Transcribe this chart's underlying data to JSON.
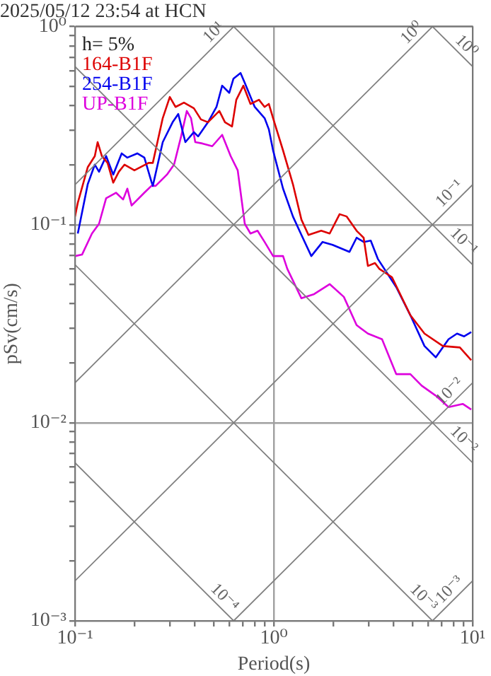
{
  "chart_data": {
    "type": "line",
    "title": "2025/05/12 23:54 at HCN",
    "xlabel": "Period(s)",
    "ylabel": "pSv(cm/s)",
    "legend_title": "h= 5%",
    "legend": "top left",
    "log": "xy",
    "grid": true,
    "marker": "none",
    "line_style": "solid",
    "xlim": [
      0.1,
      10
    ],
    "ylim": [
      0.001,
      1
    ],
    "xticks": [
      {
        "value": 0.1,
        "label": "10⁻¹"
      },
      {
        "value": 0.2,
        "label": null
      },
      {
        "value": 0.3,
        "label": null
      },
      {
        "value": 0.4,
        "label": null
      },
      {
        "value": 0.5,
        "label": null
      },
      {
        "value": 0.6,
        "label": null
      },
      {
        "value": 0.7,
        "label": null
      },
      {
        "value": 0.8,
        "label": null
      },
      {
        "value": 0.9,
        "label": null
      },
      {
        "value": 1,
        "label": "10⁰"
      },
      {
        "value": 2,
        "label": null
      },
      {
        "value": 3,
        "label": null
      },
      {
        "value": 4,
        "label": null
      },
      {
        "value": 5,
        "label": null
      },
      {
        "value": 6,
        "label": null
      },
      {
        "value": 7,
        "label": null
      },
      {
        "value": 8,
        "label": null
      },
      {
        "value": 9,
        "label": null
      },
      {
        "value": 10,
        "label": "10¹"
      }
    ],
    "yticks": [
      {
        "value": 0.001,
        "label": "10⁻³"
      },
      {
        "value": 0.002,
        "label": null
      },
      {
        "value": 0.003,
        "label": null
      },
      {
        "value": 0.004,
        "label": null
      },
      {
        "value": 0.005,
        "label": null
      },
      {
        "value": 0.006,
        "label": null
      },
      {
        "value": 0.007,
        "label": null
      },
      {
        "value": 0.008,
        "label": null
      },
      {
        "value": 0.009,
        "label": null
      },
      {
        "value": 0.01,
        "label": "10⁻²"
      },
      {
        "value": 0.02,
        "label": null
      },
      {
        "value": 0.03,
        "label": null
      },
      {
        "value": 0.04,
        "label": null
      },
      {
        "value": 0.05,
        "label": null
      },
      {
        "value": 0.06,
        "label": null
      },
      {
        "value": 0.07,
        "label": null
      },
      {
        "value": 0.08,
        "label": null
      },
      {
        "value": 0.09,
        "label": null
      },
      {
        "value": 0.1,
        "label": "10⁻¹"
      },
      {
        "value": 0.2,
        "label": null
      },
      {
        "value": 0.3,
        "label": null
      },
      {
        "value": 0.4,
        "label": null
      },
      {
        "value": 0.5,
        "label": null
      },
      {
        "value": 0.6,
        "label": null
      },
      {
        "value": 0.7,
        "label": null
      },
      {
        "value": 0.8,
        "label": null
      },
      {
        "value": 0.9,
        "label": null
      },
      {
        "value": 1,
        "label": "10⁰"
      }
    ],
    "series": [
      {
        "name": "10¹",
        "type": "line",
        "color": "#808080",
        "x": [
          0.1,
          0.6283
        ],
        "values": [
          0.15915,
          1
        ]
      },
      {
        "name": "10⁰",
        "type": "line",
        "color": "#808080",
        "x": [
          0.1,
          6.283
        ],
        "values": [
          0.015915,
          1
        ]
      },
      {
        "name": "10⁻¹",
        "type": "line",
        "color": "#808080",
        "x": [
          0.1,
          10
        ],
        "values": [
          0.0015915,
          0.15915
        ]
      },
      {
        "name": "10⁻²",
        "type": "line",
        "color": "#808080",
        "x": [
          0.6283,
          10
        ],
        "values": [
          0.001,
          0.015915
        ]
      },
      {
        "name": "10⁻³",
        "type": "line",
        "color": "#808080",
        "x": [
          6.283,
          10
        ],
        "values": [
          0.001,
          0.0015915
        ]
      },
      {
        "name": "10⁰",
        "type": "line",
        "color": "#808080",
        "x": [
          6.283,
          10
        ],
        "values": [
          1,
          0.6283
        ]
      },
      {
        "name": "10⁻¹",
        "type": "line",
        "color": "#808080",
        "x": [
          0.6283,
          10
        ],
        "values": [
          1,
          0.06283
        ]
      },
      {
        "name": "10⁻²",
        "type": "line",
        "color": "#808080",
        "x": [
          0.1,
          10
        ],
        "values": [
          0.6283,
          0.006283
        ]
      },
      {
        "name": "10⁻³",
        "type": "line",
        "color": "#808080",
        "x": [
          0.1,
          6.283
        ],
        "values": [
          0.06283,
          0.001
        ]
      },
      {
        "name": "10⁻⁴",
        "type": "line",
        "color": "#808080",
        "x": [
          0.1,
          0.6283
        ],
        "values": [
          0.006283,
          0.001
        ]
      },
      {
        "name": "164-B1F",
        "color": "#dd0000",
        "x": [
          0.1,
          0.1033,
          0.1159,
          0.1258,
          0.13,
          0.1365,
          0.1458,
          0.1557,
          0.1662,
          0.1775,
          0.199,
          0.2345,
          0.2463,
          0.2763,
          0.2999,
          0.3202,
          0.3532,
          0.3963,
          0.43,
          0.4667,
          0.5321,
          0.5681,
          0.6166,
          0.6477,
          0.7031,
          0.7633,
          0.8421,
          0.8989,
          0.9441,
          0.9917,
          1.113,
          1.248,
          1.377,
          1.494,
          1.732,
          1.91,
          2.143,
          2.326,
          2.609,
          2.831,
          2.974,
          3.228,
          3.391,
          3.93,
          4.863,
          5.728,
          7.087,
          8.628,
          9.84
        ],
        "values": [
          0.11,
          0.129,
          0.195,
          0.222,
          0.261,
          0.222,
          0.205,
          0.163,
          0.185,
          0.201,
          0.188,
          0.205,
          0.205,
          0.345,
          0.441,
          0.393,
          0.413,
          0.387,
          0.34,
          0.329,
          0.375,
          0.329,
          0.313,
          0.427,
          0.503,
          0.407,
          0.427,
          0.393,
          0.407,
          0.345,
          0.237,
          0.16,
          0.106,
          0.0887,
          0.0932,
          0.0902,
          0.113,
          0.11,
          0.0932,
          0.0859,
          0.0619,
          0.064,
          0.0599,
          0.0543,
          0.0349,
          0.0282,
          0.0244,
          0.024,
          0.0207
        ]
      },
      {
        "name": "254-B1F",
        "color": "#0000ee",
        "x": [
          0.1033,
          0.1159,
          0.1258,
          0.1321,
          0.1434,
          0.1557,
          0.1717,
          0.1834,
          0.2057,
          0.2233,
          0.2423,
          0.2463,
          0.2763,
          0.3098,
          0.3307,
          0.3591,
          0.3963,
          0.4161,
          0.4667,
          0.5149,
          0.5499,
          0.5969,
          0.6268,
          0.6803,
          0.7146,
          0.8017,
          0.8989,
          0.9441,
          0.9917,
          1.113,
          1.248,
          1.377,
          1.544,
          1.76,
          1.974,
          2.403,
          2.609,
          2.831,
          3.073,
          3.336,
          4.128,
          4.863,
          5.728,
          6.531,
          7.568,
          8.35,
          9.065,
          9.84
        ],
        "values": [
          0.0902,
          0.16,
          0.201,
          0.185,
          0.222,
          0.179,
          0.229,
          0.218,
          0.229,
          0.218,
          0.165,
          0.157,
          0.261,
          0.329,
          0.362,
          0.261,
          0.293,
          0.279,
          0.329,
          0.393,
          0.503,
          0.463,
          0.546,
          0.583,
          0.52,
          0.393,
          0.345,
          0.303,
          0.237,
          0.152,
          0.11,
          0.0887,
          0.0694,
          0.0818,
          0.0791,
          0.0729,
          0.0859,
          0.0818,
          0.0831,
          0.0672,
          0.0484,
          0.0349,
          0.0244,
          0.0214,
          0.0264,
          0.0282,
          0.0273,
          0.0287
        ]
      },
      {
        "name": "UP-B1F",
        "color": "#dd00dd",
        "x": [
          0.1,
          0.1085,
          0.1217,
          0.1321,
          0.1434,
          0.1608,
          0.1746,
          0.1834,
          0.1927,
          0.2233,
          0.2423,
          0.2545,
          0.2901,
          0.315,
          0.3418,
          0.365,
          0.3833,
          0.4027,
          0.4371,
          0.4902,
          0.5499,
          0.6068,
          0.6584,
          0.7146,
          0.7633,
          0.8282,
          0.8989,
          0.9917,
          1.113,
          1.169,
          1.377,
          1.595,
          1.91,
          2.251,
          2.609,
          2.974,
          3.503,
          4.128,
          4.863,
          5.543,
          6.531,
          7.568,
          8.916,
          9.84
        ],
        "values": [
          0.0694,
          0.0706,
          0.0902,
          0.101,
          0.136,
          0.145,
          0.134,
          0.152,
          0.125,
          0.145,
          0.157,
          0.157,
          0.179,
          0.201,
          0.279,
          0.375,
          0.345,
          0.261,
          0.257,
          0.249,
          0.284,
          0.222,
          0.188,
          0.101,
          0.0902,
          0.0932,
          0.0818,
          0.0694,
          0.0694,
          0.0599,
          0.0425,
          0.0446,
          0.0501,
          0.0432,
          0.0311,
          0.0282,
          0.0264,
          0.0176,
          0.0176,
          0.0154,
          0.0137,
          0.012,
          0.01245,
          0.01166
        ]
      }
    ]
  }
}
